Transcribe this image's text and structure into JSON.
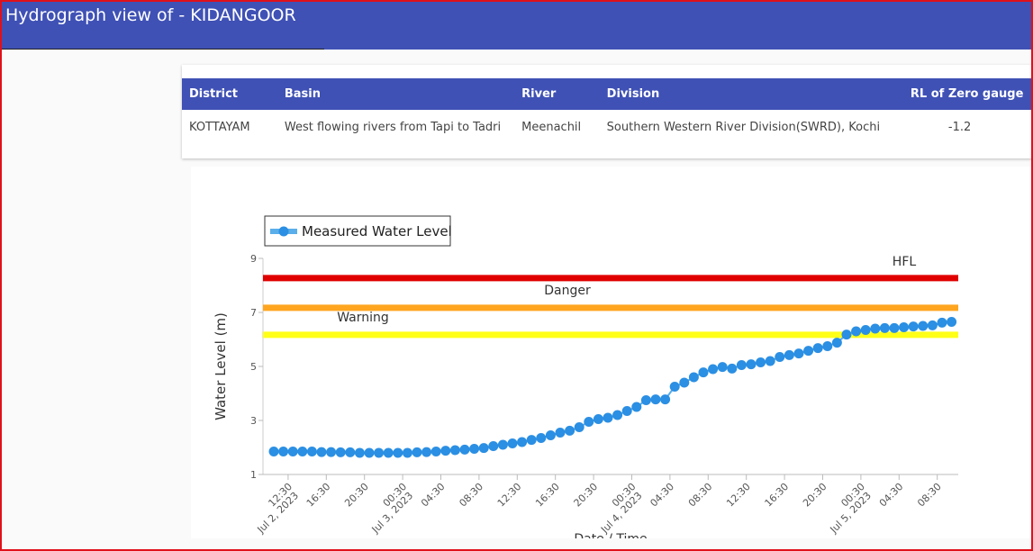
{
  "header": {
    "title": "Hydrograph view of - KIDANGOOR"
  },
  "table": {
    "columns": [
      "District",
      "Basin",
      "River",
      "Division",
      "RL of Zero gauge"
    ],
    "rows": [
      [
        "KOTTAYAM",
        "West flowing rivers from Tapi to Tadri",
        "Meenachil",
        "Southern Western River Division(SWRD), Kochi",
        "-1.2"
      ]
    ]
  },
  "chart_data": {
    "type": "line",
    "y_label": "Water Level (m)",
    "x_label": "Date / Time",
    "ylim": [
      1,
      9
    ],
    "yticks": [
      1,
      3,
      5,
      7,
      9
    ],
    "xlim": [
      "2023-07-02T09:52",
      "2023-07-05T10:42"
    ],
    "xticks": [
      {
        "value": "2023-07-02T12:30",
        "label": "12:30"
      },
      {
        "value": "2023-07-02T16:30",
        "label": "16:30"
      },
      {
        "value": "2023-07-02T20:30",
        "label": "20:30"
      },
      {
        "value": "2023-07-03T00:30",
        "label": "00:30"
      },
      {
        "value": "2023-07-03T04:30",
        "label": "04:30"
      },
      {
        "value": "2023-07-03T08:30",
        "label": "08:30"
      },
      {
        "value": "2023-07-03T12:30",
        "label": "12:30"
      },
      {
        "value": "2023-07-03T16:30",
        "label": "16:30"
      },
      {
        "value": "2023-07-03T20:30",
        "label": "20:30"
      },
      {
        "value": "2023-07-04T00:30",
        "label": "00:30"
      },
      {
        "value": "2023-07-04T04:30",
        "label": "04:30"
      },
      {
        "value": "2023-07-04T08:30",
        "label": "08:30"
      },
      {
        "value": "2023-07-04T12:30",
        "label": "12:30"
      },
      {
        "value": "2023-07-04T16:30",
        "label": "16:30"
      },
      {
        "value": "2023-07-04T20:30",
        "label": "20:30"
      },
      {
        "value": "2023-07-05T00:30",
        "label": "00:30"
      },
      {
        "value": "2023-07-05T04:30",
        "label": "04:30"
      },
      {
        "value": "2023-07-05T08:30",
        "label": "08:30"
      }
    ],
    "x_date_labels": [
      {
        "value": "2023-07-02T12:30",
        "label": "Jul 2, 2023"
      },
      {
        "value": "2023-07-03T00:30",
        "label": "Jul 3, 2023"
      },
      {
        "value": "2023-07-04T00:30",
        "label": "Jul 4, 2023"
      },
      {
        "value": "2023-07-05T00:30",
        "label": "Jul 5, 2023"
      }
    ],
    "thresholds": [
      {
        "name": "HFL",
        "value": 8.27,
        "color": "#e00000"
      },
      {
        "name": "Danger",
        "value": 7.17,
        "color": "#ffa51f"
      },
      {
        "name": "Warning",
        "value": 6.17,
        "color": "#ffff17"
      }
    ],
    "x": [
      "2023-07-02T11:00",
      "2023-07-02T12:00",
      "2023-07-02T13:00",
      "2023-07-02T14:00",
      "2023-07-02T15:00",
      "2023-07-02T16:00",
      "2023-07-02T17:00",
      "2023-07-02T18:00",
      "2023-07-02T19:00",
      "2023-07-02T20:00",
      "2023-07-02T21:00",
      "2023-07-02T22:00",
      "2023-07-02T23:00",
      "2023-07-03T00:00",
      "2023-07-03T01:00",
      "2023-07-03T02:00",
      "2023-07-03T03:00",
      "2023-07-03T04:00",
      "2023-07-03T05:00",
      "2023-07-03T06:00",
      "2023-07-03T07:00",
      "2023-07-03T08:00",
      "2023-07-03T09:00",
      "2023-07-03T10:00",
      "2023-07-03T11:00",
      "2023-07-03T12:00",
      "2023-07-03T13:00",
      "2023-07-03T14:00",
      "2023-07-03T15:00",
      "2023-07-03T16:00",
      "2023-07-03T17:00",
      "2023-07-03T18:00",
      "2023-07-03T19:00",
      "2023-07-03T20:00",
      "2023-07-03T21:00",
      "2023-07-03T22:00",
      "2023-07-03T23:00",
      "2023-07-04T00:00",
      "2023-07-04T01:00",
      "2023-07-04T02:00",
      "2023-07-04T03:00",
      "2023-07-04T04:00",
      "2023-07-04T05:00",
      "2023-07-04T06:00",
      "2023-07-04T07:00",
      "2023-07-04T08:00",
      "2023-07-04T09:00",
      "2023-07-04T10:00",
      "2023-07-04T11:00",
      "2023-07-04T12:00",
      "2023-07-04T13:00",
      "2023-07-04T14:00",
      "2023-07-04T15:00",
      "2023-07-04T16:00",
      "2023-07-04T17:00",
      "2023-07-04T18:00",
      "2023-07-04T19:00",
      "2023-07-04T20:00",
      "2023-07-04T21:00",
      "2023-07-04T22:00",
      "2023-07-04T23:00",
      "2023-07-05T00:00",
      "2023-07-05T01:00",
      "2023-07-05T02:00",
      "2023-07-05T03:00",
      "2023-07-05T04:00",
      "2023-07-05T05:00",
      "2023-07-05T06:00",
      "2023-07-05T07:00",
      "2023-07-05T08:00",
      "2023-07-05T09:00",
      "2023-07-05T10:00"
    ],
    "series": [
      {
        "name": "Measured Water Level",
        "color": "#2b8fe3",
        "values": [
          1.85,
          1.85,
          1.85,
          1.85,
          1.85,
          1.83,
          1.83,
          1.82,
          1.82,
          1.8,
          1.8,
          1.8,
          1.8,
          1.8,
          1.8,
          1.82,
          1.83,
          1.85,
          1.88,
          1.9,
          1.92,
          1.95,
          1.98,
          2.05,
          2.1,
          2.15,
          2.2,
          2.28,
          2.35,
          2.45,
          2.55,
          2.62,
          2.75,
          2.95,
          3.05,
          3.1,
          3.2,
          3.35,
          3.5,
          3.75,
          3.78,
          3.78,
          4.25,
          4.4,
          4.6,
          4.78,
          4.9,
          4.98,
          4.92,
          5.05,
          5.08,
          5.15,
          5.2,
          5.35,
          5.42,
          5.48,
          5.58,
          5.68,
          5.75,
          5.88,
          6.18,
          6.3,
          6.35,
          6.4,
          6.42,
          6.42,
          6.45,
          6.48,
          6.5,
          6.52,
          6.62,
          6.65
        ]
      }
    ]
  }
}
